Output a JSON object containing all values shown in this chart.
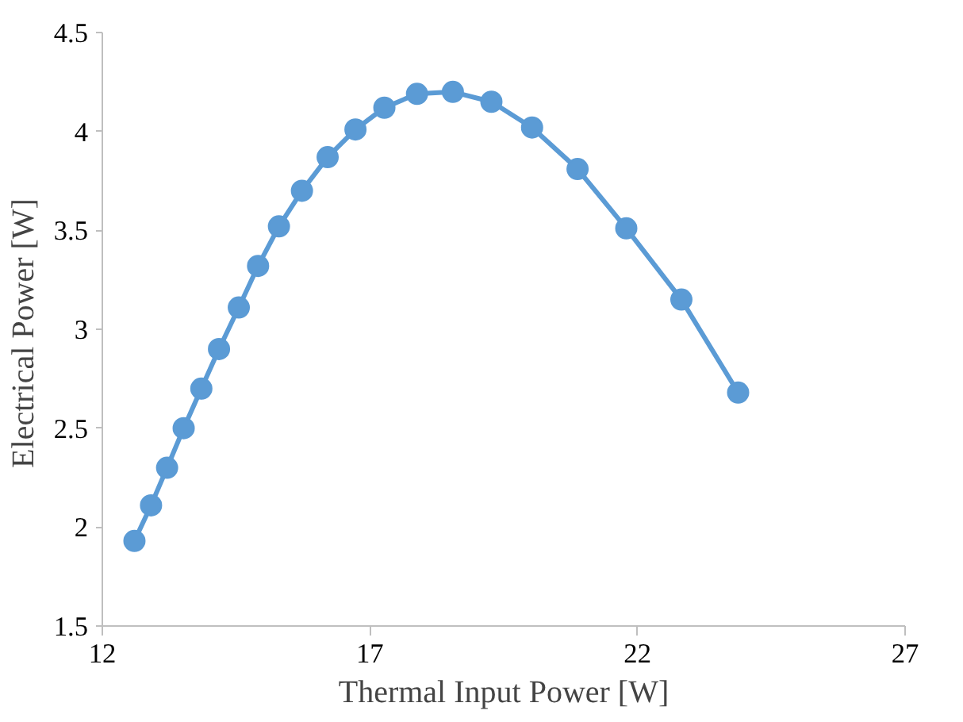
{
  "chart_data": {
    "type": "line",
    "xlabel": "Thermal Input Power [W]",
    "ylabel": "Electrical Power  [W]",
    "x": [
      12.6,
      12.91,
      13.21,
      13.52,
      13.85,
      14.18,
      14.55,
      14.91,
      15.3,
      15.73,
      16.21,
      16.73,
      17.27,
      17.88,
      18.55,
      19.27,
      20.03,
      20.88,
      21.79,
      22.82,
      23.88
    ],
    "series": [
      {
        "color": "#5b9bd5",
        "values": [
          1.93,
          2.11,
          2.3,
          2.5,
          2.7,
          2.9,
          3.11,
          3.32,
          3.52,
          3.7,
          3.87,
          4.01,
          4.12,
          4.19,
          4.2,
          4.15,
          4.02,
          3.81,
          3.51,
          3.15,
          2.68
        ]
      }
    ],
    "xlim": [
      12,
      27
    ],
    "xticks": [
      12,
      17,
      22,
      27
    ],
    "ylim": [
      1.5,
      4.5
    ],
    "yticks": [
      1.5,
      2,
      2.5,
      3,
      3.5,
      4,
      4.5
    ],
    "grid": false,
    "marker": "circle",
    "line_style": "solid"
  }
}
